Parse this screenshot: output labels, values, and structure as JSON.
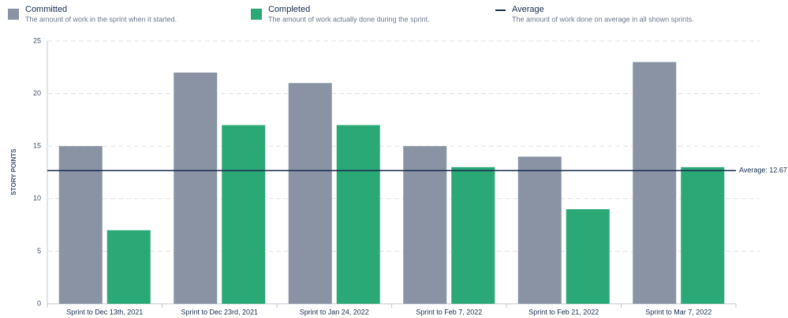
{
  "chart_data": {
    "type": "bar",
    "y_label": "STORY POINTS",
    "categories": [
      "Sprint to Dec 13th, 2021",
      "Sprint to Dec 23rd, 2021",
      "Sprint to Jan 24, 2022",
      "Sprint to Feb 7, 2022",
      "Sprint to Feb 21, 2022",
      "Sprint to Mar 7, 2022"
    ],
    "series": [
      {
        "name": "Committed",
        "description": "The amount of work in the sprint when it started.",
        "color": "#8993a4",
        "values": [
          15,
          22,
          21,
          15,
          14,
          23
        ]
      },
      {
        "name": "Completed",
        "description": "The amount of work actually done during the sprint.",
        "color": "#2aa876",
        "values": [
          7,
          17,
          17,
          13,
          9,
          13
        ]
      }
    ],
    "average": {
      "name": "Average",
      "description": "The amount of work done on average in all shown sprints.",
      "color": "#172b4d",
      "value": 12.67,
      "label": "Average: 12.67"
    },
    "ylim": [
      0,
      25
    ],
    "yticks": [
      0,
      5,
      10,
      15,
      20,
      25
    ],
    "grid": true
  }
}
